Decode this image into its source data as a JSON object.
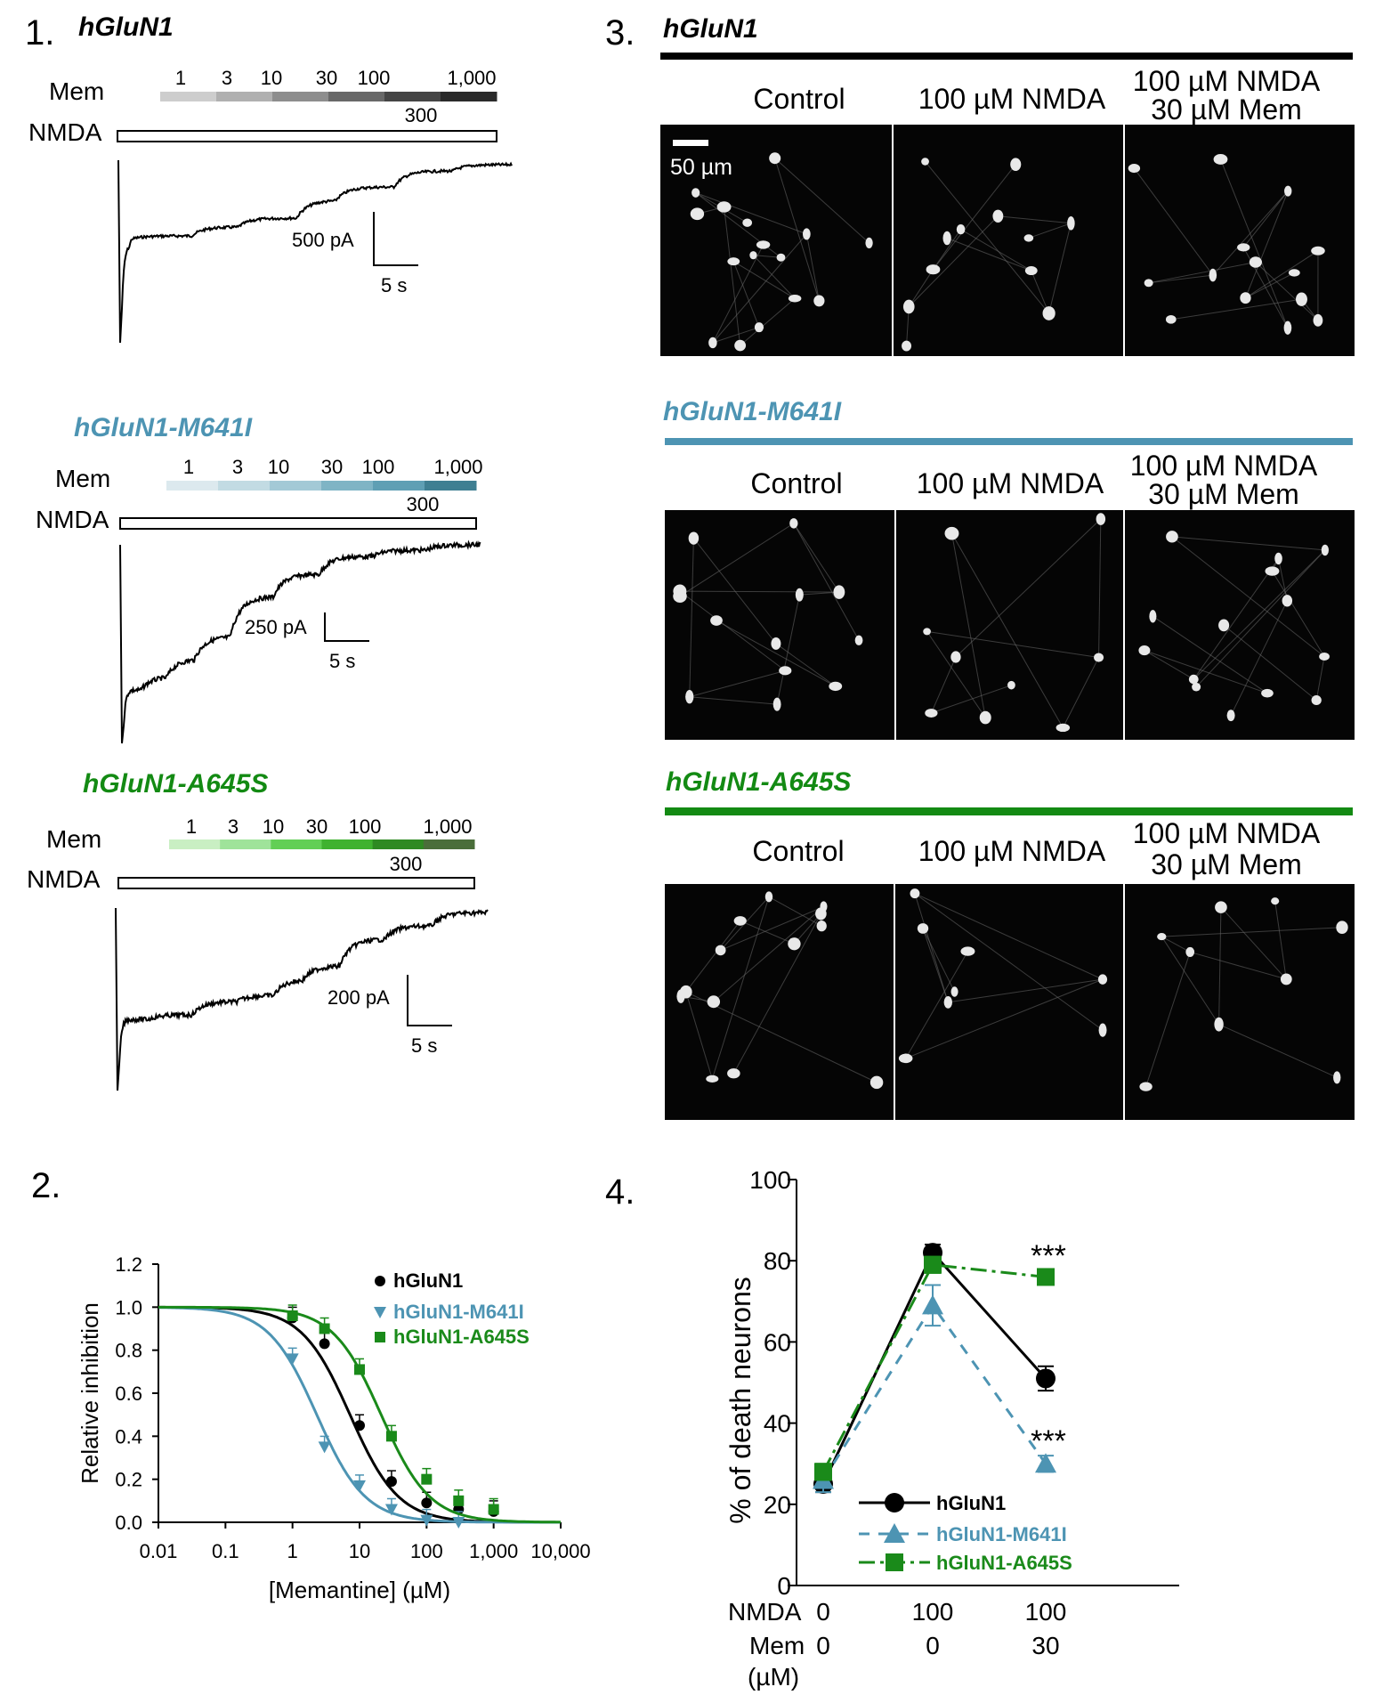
{
  "panel1": {
    "number": "1.",
    "traces": [
      {
        "label": "hGluN1",
        "mem_row": "Mem",
        "nmda_row": "NMDA",
        "conc_top": [
          "1",
          "3",
          "10",
          "30",
          "100",
          "1,000"
        ],
        "conc_mid": "300",
        "scale_y": "500 pA",
        "scale_x": "5 s",
        "colors": [
          "#cdcdcd",
          "#b0b0b0",
          "#8d8d8d",
          "#686868",
          "#454545",
          "#2a2a2a"
        ],
        "label_color": "#000000"
      },
      {
        "label": "hGluN1-M641I",
        "mem_row": "Mem",
        "nmda_row": "NMDA",
        "conc_top": [
          "1",
          "3",
          "10",
          "30",
          "100",
          "1,000"
        ],
        "conc_mid": "300",
        "scale_y": "250 pA",
        "scale_x": "5 s",
        "colors": [
          "#dce9ee",
          "#c2dbe3",
          "#a3c9d6",
          "#7fb4c5",
          "#5f9fb4",
          "#3f7f92"
        ],
        "label_color": "#4d94b3"
      },
      {
        "label": "hGluN1-A645S",
        "mem_row": "Mem",
        "nmda_row": "NMDA",
        "conc_top": [
          "1",
          "3",
          "10",
          "30",
          "100",
          "1,000"
        ],
        "conc_mid": "300",
        "scale_y": "200 pA",
        "scale_x": "5 s",
        "colors": [
          "#c9efc3",
          "#9fe39a",
          "#62cf55",
          "#3fb22f",
          "#2e8a22",
          "#4a6e3a"
        ],
        "label_color": "#138a13"
      }
    ]
  },
  "panel2": {
    "number": "2.",
    "chart_data": {
      "type": "scatter",
      "xlabel": "[Memantine] (µM)",
      "ylabel": "Relative inhibition",
      "xscale": "log",
      "xlim": [
        0.01,
        10000
      ],
      "ylim": [
        0.0,
        1.2
      ],
      "xticks": [
        "0.01",
        "0.1",
        "1",
        "10",
        "100",
        "1,000",
        "10,000"
      ],
      "yticks": [
        "0.0",
        "0.2",
        "0.4",
        "0.6",
        "0.8",
        "1.0",
        "1.2"
      ],
      "legend_position": "top-right",
      "series": [
        {
          "name": "hGluN1",
          "color": "#000000",
          "marker": "circle",
          "x": [
            1,
            3,
            10,
            30,
            100,
            300,
            1000
          ],
          "y": [
            0.95,
            0.83,
            0.45,
            0.19,
            0.09,
            0.06,
            0.05
          ],
          "ic50": 7.2
        },
        {
          "name": "hGluN1-M641I",
          "color": "#4d94b3",
          "marker": "triangle-down",
          "x": [
            1,
            3,
            10,
            30,
            100,
            300
          ],
          "y": [
            0.76,
            0.35,
            0.17,
            0.06,
            0.01,
            0.0
          ],
          "ic50": 2.3
        },
        {
          "name": "hGluN1-A645S",
          "color": "#1a8a1a",
          "marker": "square",
          "x": [
            1,
            3,
            10,
            30,
            100,
            300,
            1000
          ],
          "y": [
            0.96,
            0.9,
            0.71,
            0.4,
            0.2,
            0.1,
            0.06
          ],
          "ic50": 21
        }
      ]
    }
  },
  "panel3": {
    "number": "3.",
    "groups": [
      {
        "label": "hGluN1",
        "color": "#000000",
        "cols": [
          "Control",
          "100 µM NMDA",
          "100 µM NMDA",
          "30 µM Mem"
        ],
        "scalebar": "50 µm"
      },
      {
        "label": "hGluN1-M641I",
        "color": "#4d94b3",
        "cols": [
          "Control",
          "100 µM NMDA",
          "100 µM NMDA",
          "30 µM Mem"
        ]
      },
      {
        "label": "hGluN1-A645S",
        "color": "#138a13",
        "cols": [
          "Control",
          "100 µM NMDA",
          "100 µM NMDA",
          "30 µM Mem"
        ]
      }
    ]
  },
  "panel4": {
    "number": "4.",
    "chart_data": {
      "type": "line",
      "ylabel": "% of death neurons",
      "ylim": [
        0,
        100
      ],
      "yticks": [
        "0",
        "20",
        "40",
        "60",
        "80",
        "100"
      ],
      "row_labels": {
        "nmda": "NMDA",
        "mem": "Mem",
        "unit": "(µM)"
      },
      "categories_nmda": [
        "0",
        "100",
        "100"
      ],
      "categories_mem": [
        "0",
        "0",
        "30"
      ],
      "legend_position": "bottom-left",
      "annotations": [
        "***",
        "***"
      ],
      "series": [
        {
          "name": "hGluN1",
          "color": "#000000",
          "marker": "circle",
          "values": [
            25,
            82,
            51
          ],
          "errors": [
            2,
            2,
            3
          ]
        },
        {
          "name": "hGluN1-M641I",
          "color": "#4d94b3",
          "marker": "triangle",
          "values": [
            26,
            69,
            30
          ],
          "errors": [
            3,
            5,
            2
          ]
        },
        {
          "name": "hGluN1-A645S",
          "color": "#1a8a1a",
          "marker": "square",
          "values": [
            28,
            79,
            76
          ],
          "errors": [
            2,
            2,
            1
          ]
        }
      ]
    }
  }
}
